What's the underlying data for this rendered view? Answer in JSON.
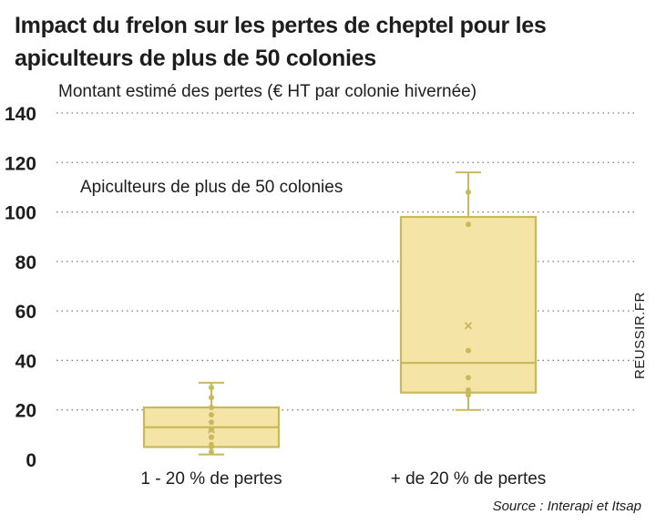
{
  "chart_data": {
    "type": "box",
    "title": "Impact du frelon sur les pertes de cheptel pour les apiculteurs de plus de 50 colonies",
    "ylabel": "Montant estimé des pertes (€ HT par colonie hivernée)",
    "annotation": "Apiculteurs de plus de 50 colonies",
    "ylim": [
      0,
      140
    ],
    "yticks": [
      0,
      20,
      40,
      60,
      80,
      100,
      120,
      140
    ],
    "grid": true,
    "categories": [
      "1 - 20 % de pertes",
      "+ de 20 % de pertes"
    ],
    "boxes": [
      {
        "category": "1 - 20 % de pertes",
        "min": 2,
        "q1": 5,
        "median": 13,
        "q3": 21,
        "max": 31,
        "mean": 12,
        "points": [
          3,
          5,
          6,
          9,
          12,
          15,
          18,
          21,
          25,
          29
        ]
      },
      {
        "category": "+ de 20 % de pertes",
        "min": 20,
        "q1": 27,
        "median": 39,
        "q3": 98,
        "max": 116,
        "mean": 54,
        "points": [
          26,
          28,
          33,
          44,
          95,
          108
        ]
      }
    ],
    "colors": {
      "box_fill": "#f4e4a5",
      "box_stroke": "#c8b95b",
      "grid": "#7a7a7a"
    }
  },
  "source": "Source : Interapi et Itsap",
  "watermark": "REUSSIR.FR"
}
